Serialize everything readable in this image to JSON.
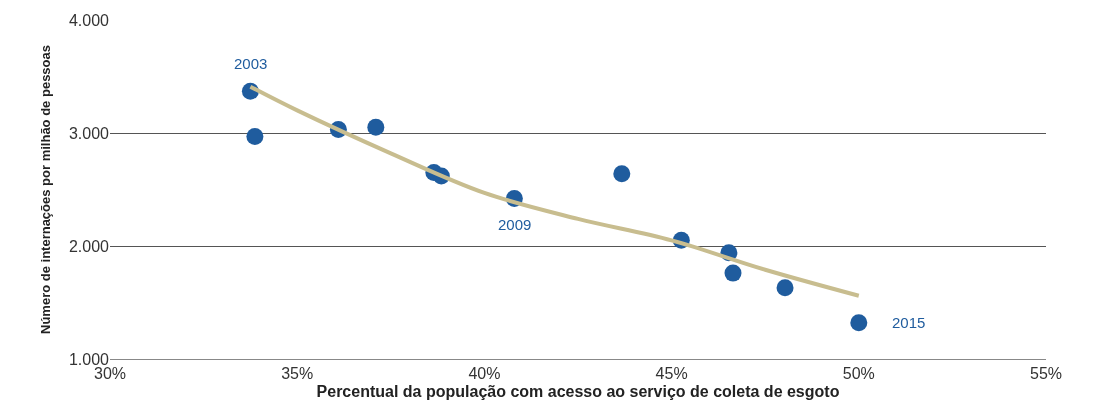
{
  "chart_data": {
    "type": "scatter",
    "xlabel": "Percentual da população com acesso ao serviço de coleta de esgoto",
    "ylabel": "Número de internações por milhão de pessoas",
    "x": [
      33.75,
      33.87,
      36.1,
      37.1,
      38.65,
      38.85,
      40.8,
      43.67,
      45.26,
      46.53,
      46.64,
      48.03,
      50.0
    ],
    "series": [
      {
        "marker": "circle",
        "color": "#1f5c9e",
        "values": [
          3370,
          2970,
          3030,
          3050,
          2650,
          2620,
          2420,
          2640,
          2050,
          1940,
          1760,
          1630,
          1320
        ]
      },
      {
        "type": "line",
        "marker": "none",
        "color": "#c8bd8f",
        "x": [
          33.75,
          35,
          37.5,
          40,
          42.5,
          45,
          47.5,
          50
        ],
        "values": [
          3410,
          3200,
          2820,
          2470,
          2240,
          2050,
          1790,
          1560
        ]
      }
    ],
    "annotations": [
      {
        "text": "2003",
        "x": 33.75,
        "y": 3370
      },
      {
        "text": "2009",
        "x": 40.8,
        "y": 2420
      },
      {
        "text": "2015",
        "x": 50.0,
        "y": 1320
      }
    ],
    "xlim": [
      30,
      55
    ],
    "xticks": [
      {
        "value": 30,
        "label": "30%"
      },
      {
        "value": 35,
        "label": "35%"
      },
      {
        "value": 40,
        "label": "40%"
      },
      {
        "value": 45,
        "label": "45%"
      },
      {
        "value": 50,
        "label": "50%"
      },
      {
        "value": 55,
        "label": "55%"
      }
    ],
    "ylim": [
      1000,
      4000
    ],
    "yticks": [
      {
        "value": 1000,
        "label": "1.000"
      },
      {
        "value": 2000,
        "label": "2.000"
      },
      {
        "value": 3000,
        "label": "3.000"
      },
      {
        "value": 4000,
        "label": "4.000"
      }
    ],
    "grid": "y"
  }
}
